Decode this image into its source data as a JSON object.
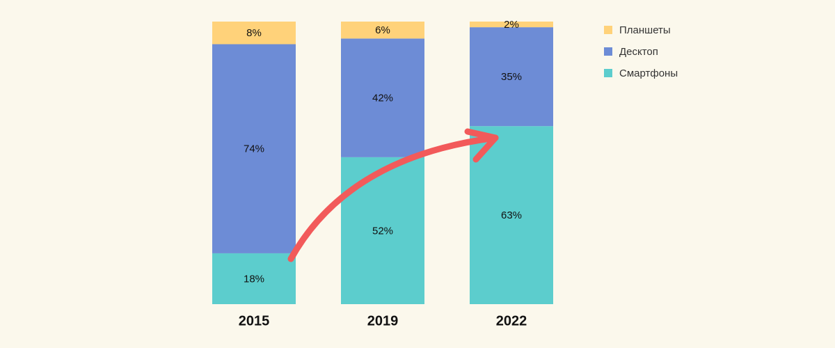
{
  "chart_data": {
    "type": "stacked_bar",
    "categories": [
      "2015",
      "2019",
      "2022"
    ],
    "series": [
      {
        "name": "Смартфоны",
        "color": "#5ccdcd",
        "values": [
          18,
          52,
          63
        ],
        "value_labels": [
          "18%",
          "52%",
          "63%"
        ]
      },
      {
        "name": "Десктоп",
        "color": "#6d8cd6",
        "values": [
          74,
          42,
          35
        ],
        "value_labels": [
          "74%",
          "42%",
          "35%"
        ]
      },
      {
        "name": "Планшеты",
        "color": "#ffd27a",
        "values": [
          8,
          6,
          2
        ],
        "value_labels": [
          "8%",
          "6%",
          "2%"
        ]
      }
    ]
  }
}
